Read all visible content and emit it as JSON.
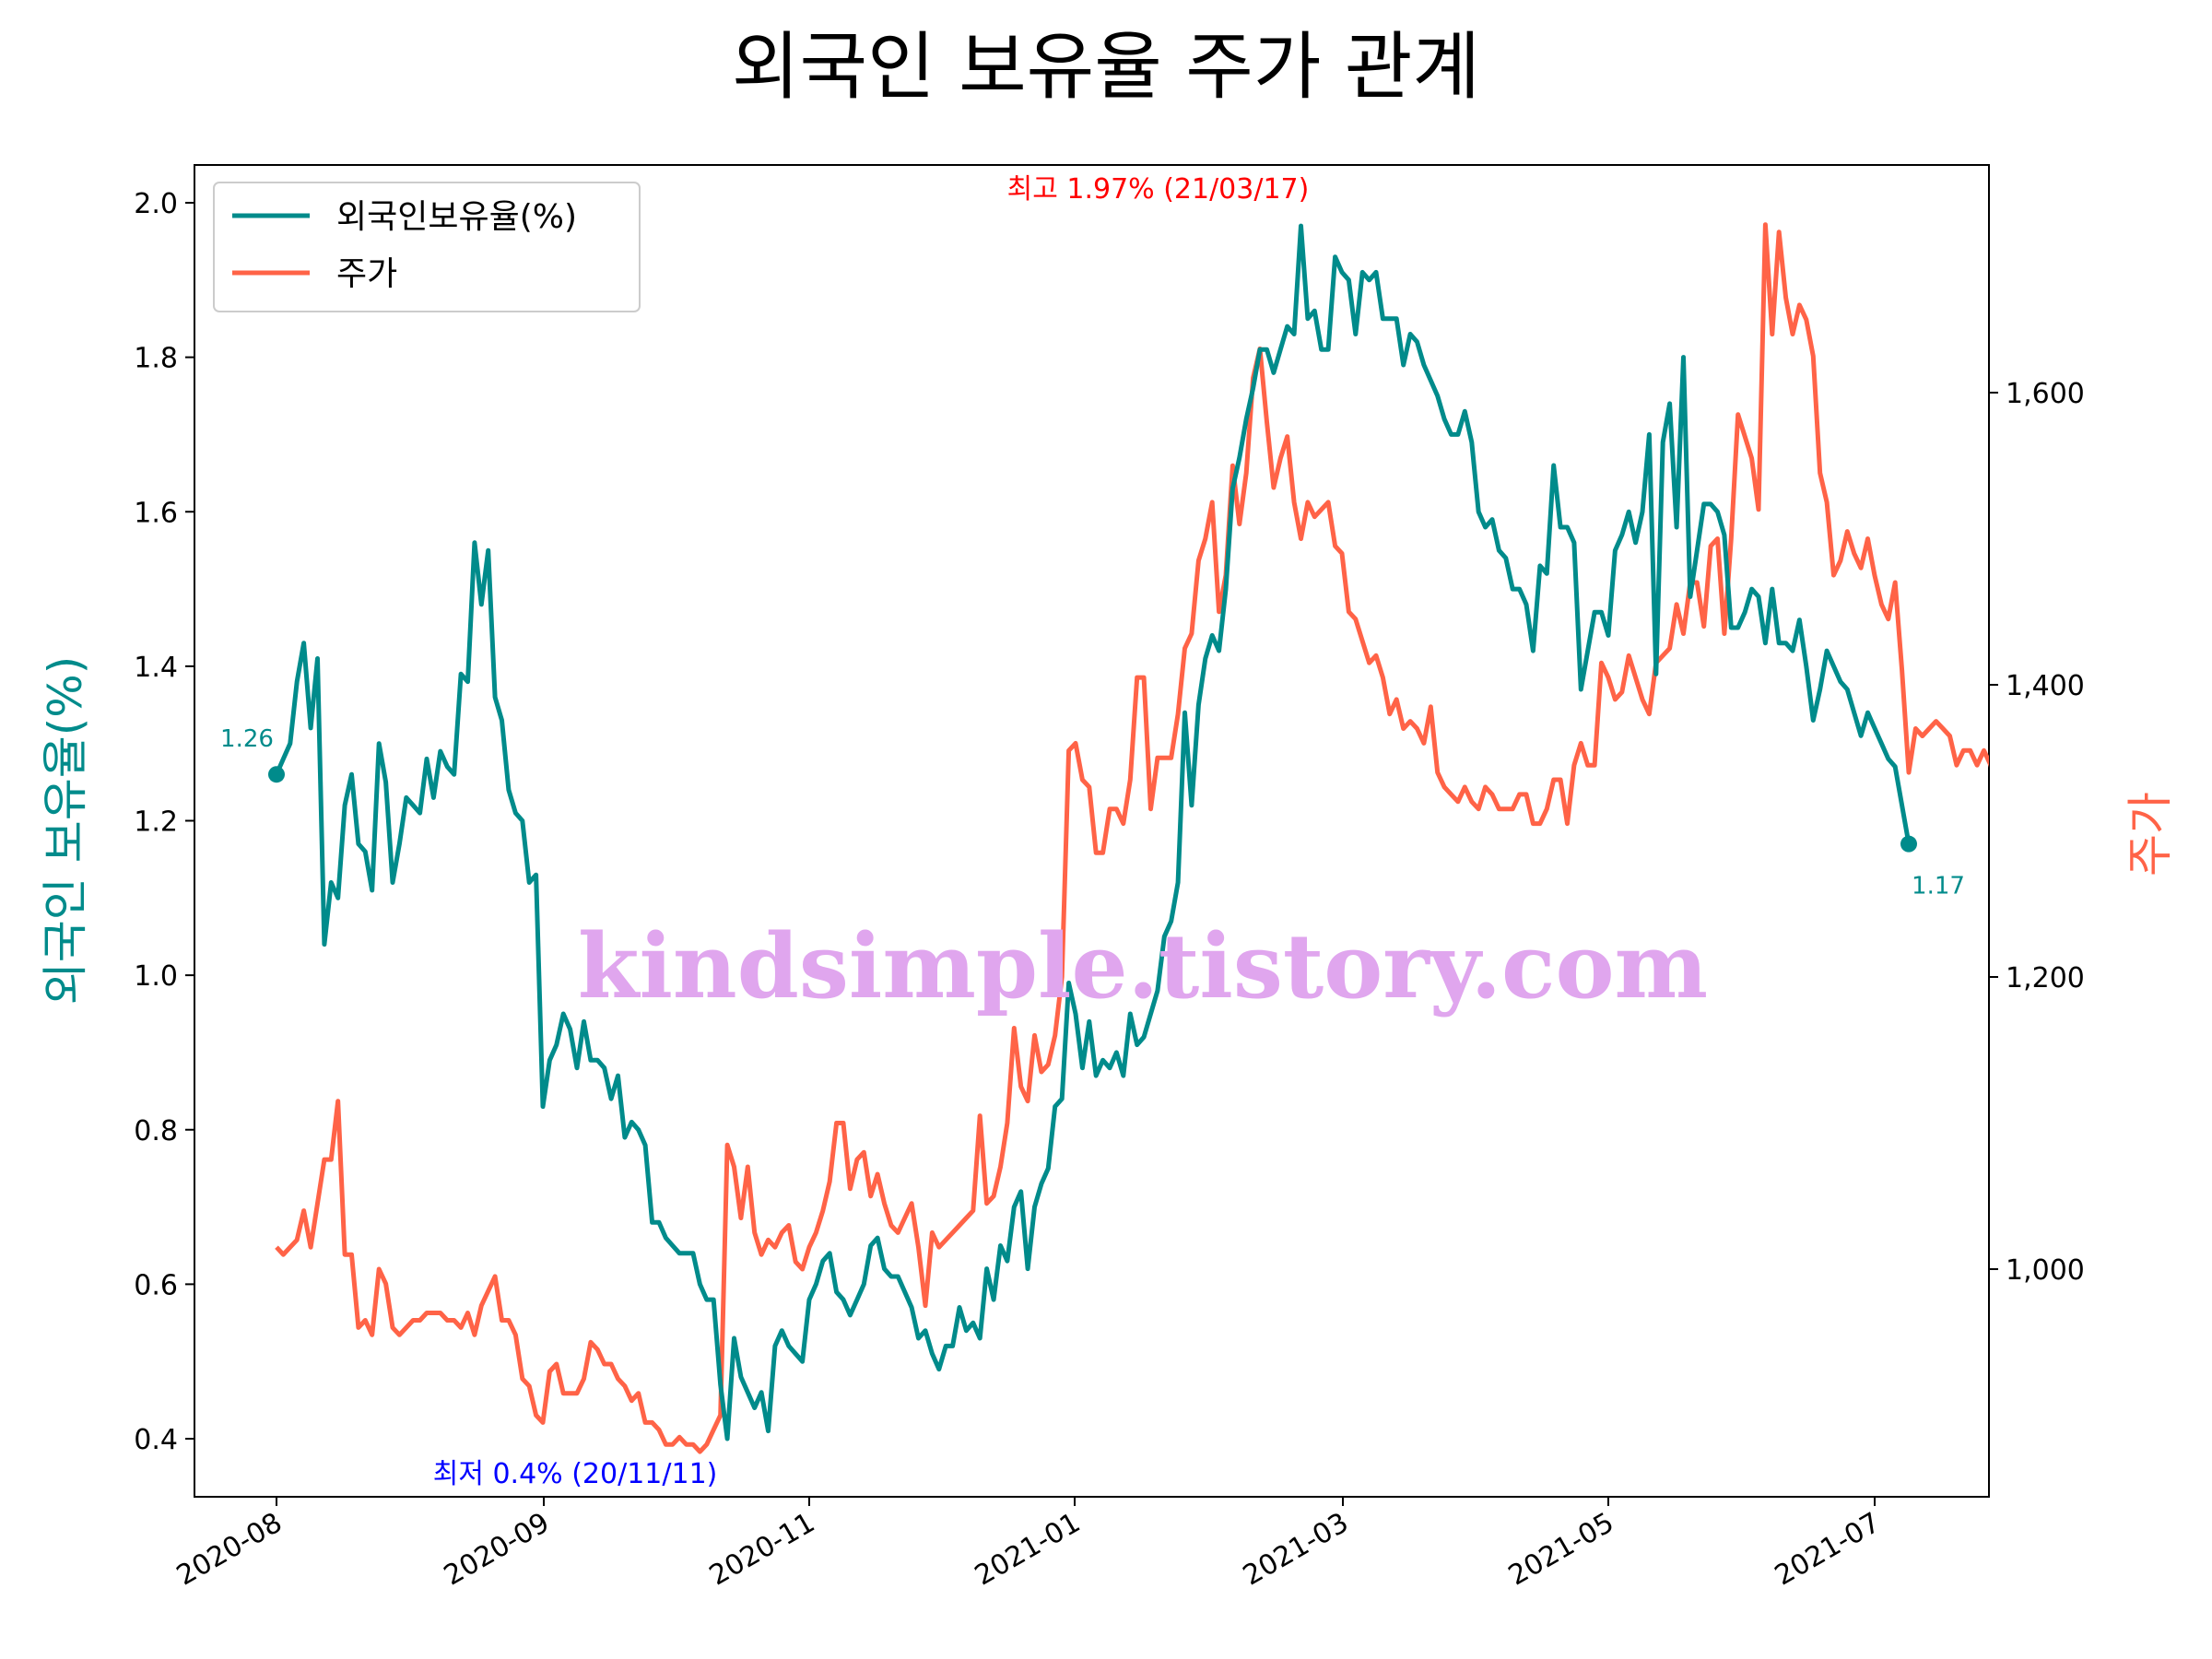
{
  "chart_data": {
    "type": "line",
    "title": "외국인 보유율 주가 관계",
    "ylabel": "외국인 보유율(%)",
    "y2label": "주가",
    "ylim": [
      0.32,
      2.05
    ],
    "y2lim": [
      845,
      1757
    ],
    "yticks": [
      "0.4",
      "0.6",
      "0.8",
      "1.0",
      "1.2",
      "1.4",
      "1.6",
      "1.8",
      "2.0"
    ],
    "y2ticks": [
      "1,000",
      "1,200",
      "1,400",
      "1,600"
    ],
    "xticks": [
      "2020-08",
      "2020-09",
      "2020-11",
      "2021-01",
      "2021-03",
      "2021-05",
      "2021-07"
    ],
    "grid": false,
    "legend_position": "upper left",
    "series": [
      {
        "name": "외국인보유율(%)",
        "axis": "left",
        "color": "#008b8b",
        "values": [
          1.26,
          1.28,
          1.3,
          1.38,
          1.43,
          1.32,
          1.41,
          1.04,
          1.12,
          1.1,
          1.22,
          1.26,
          1.17,
          1.16,
          1.11,
          1.3,
          1.25,
          1.12,
          1.17,
          1.23,
          1.22,
          1.21,
          1.28,
          1.23,
          1.29,
          1.27,
          1.26,
          1.39,
          1.38,
          1.56,
          1.48,
          1.55,
          1.36,
          1.33,
          1.24,
          1.21,
          1.2,
          1.12,
          1.13,
          0.83,
          0.89,
          0.91,
          0.95,
          0.93,
          0.88,
          0.94,
          0.89,
          0.89,
          0.88,
          0.84,
          0.87,
          0.79,
          0.81,
          0.8,
          0.78,
          0.68,
          0.68,
          0.66,
          0.65,
          0.64,
          0.64,
          0.64,
          0.6,
          0.58,
          0.58,
          0.47,
          0.4,
          0.53,
          0.48,
          0.46,
          0.44,
          0.46,
          0.41,
          0.52,
          0.54,
          0.52,
          0.51,
          0.5,
          0.58,
          0.6,
          0.63,
          0.64,
          0.59,
          0.58,
          0.56,
          0.58,
          0.6,
          0.65,
          0.66,
          0.62,
          0.61,
          0.61,
          0.59,
          0.57,
          0.53,
          0.54,
          0.51,
          0.49,
          0.52,
          0.52,
          0.57,
          0.54,
          0.55,
          0.53,
          0.62,
          0.58,
          0.65,
          0.63,
          0.7,
          0.72,
          0.62,
          0.7,
          0.73,
          0.75,
          0.83,
          0.84,
          0.99,
          0.95,
          0.88,
          0.94,
          0.87,
          0.89,
          0.88,
          0.9,
          0.87,
          0.95,
          0.91,
          0.92,
          0.95,
          0.98,
          1.05,
          1.07,
          1.12,
          1.34,
          1.22,
          1.35,
          1.41,
          1.44,
          1.42,
          1.5,
          1.63,
          1.67,
          1.72,
          1.76,
          1.81,
          1.81,
          1.78,
          1.81,
          1.84,
          1.83,
          1.97,
          1.85,
          1.86,
          1.81,
          1.81,
          1.93,
          1.91,
          1.9,
          1.83,
          1.91,
          1.9,
          1.91,
          1.85,
          1.85,
          1.85,
          1.79,
          1.83,
          1.82,
          1.79,
          1.77,
          1.75,
          1.72,
          1.7,
          1.7,
          1.73,
          1.69,
          1.6,
          1.58,
          1.59,
          1.55,
          1.54,
          1.5,
          1.5,
          1.48,
          1.42,
          1.53,
          1.52,
          1.66,
          1.58,
          1.58,
          1.56,
          1.37,
          1.42,
          1.47,
          1.47,
          1.44,
          1.55,
          1.57,
          1.6,
          1.56,
          1.6,
          1.7,
          1.39,
          1.69,
          1.74,
          1.58,
          1.8,
          1.49,
          1.55,
          1.61,
          1.61,
          1.6,
          1.57,
          1.45,
          1.45,
          1.47,
          1.5,
          1.49,
          1.43,
          1.5,
          1.43,
          1.43,
          1.42,
          1.46,
          1.4,
          1.33,
          1.37,
          1.42,
          1.4,
          1.38,
          1.37,
          1.34,
          1.31,
          1.34,
          1.32,
          1.3,
          1.28,
          1.27,
          1.22,
          1.17
        ]
      },
      {
        "name": "주가",
        "axis": "right",
        "color": "#ff6347",
        "values": [
          1015,
          1010,
          1015,
          1020,
          1040,
          1015,
          1045,
          1075,
          1075,
          1115,
          1010,
          1010,
          960,
          965,
          955,
          1000,
          990,
          960,
          955,
          960,
          965,
          965,
          970,
          970,
          970,
          965,
          965,
          960,
          970,
          955,
          975,
          985,
          995,
          965,
          965,
          955,
          925,
          920,
          900,
          895,
          930,
          935,
          915,
          915,
          915,
          925,
          950,
          945,
          935,
          935,
          925,
          920,
          910,
          915,
          895,
          895,
          890,
          880,
          880,
          885,
          880,
          880,
          875,
          880,
          890,
          900,
          1085,
          1070,
          1035,
          1070,
          1025,
          1010,
          1020,
          1015,
          1025,
          1030,
          1005,
          1000,
          1015,
          1025,
          1040,
          1060,
          1100,
          1100,
          1055,
          1075,
          1080,
          1050,
          1065,
          1045,
          1030,
          1025,
          1035,
          1045,
          1015,
          975,
          1025,
          1015,
          1020,
          1025,
          1030,
          1035,
          1040,
          1105,
          1045,
          1050,
          1070,
          1100,
          1165,
          1125,
          1115,
          1160,
          1135,
          1140,
          1160,
          1200,
          1355,
          1360,
          1335,
          1330,
          1285,
          1285,
          1315,
          1315,
          1305,
          1335,
          1405,
          1405,
          1315,
          1350,
          1350,
          1350,
          1380,
          1425,
          1435,
          1485,
          1500,
          1525,
          1450,
          1475,
          1550,
          1510,
          1545,
          1610,
          1630,
          1580,
          1535,
          1555,
          1570,
          1525,
          1500,
          1525,
          1515,
          1520,
          1525,
          1495,
          1490,
          1450,
          1445,
          1430,
          1415,
          1420,
          1405,
          1380,
          1390,
          1370,
          1375,
          1370,
          1360,
          1385,
          1340,
          1330,
          1325,
          1320,
          1330,
          1320,
          1315,
          1330,
          1325,
          1315,
          1315,
          1315,
          1325,
          1325,
          1305,
          1305,
          1315,
          1335,
          1335,
          1305,
          1345,
          1360,
          1345,
          1345,
          1415,
          1405,
          1390,
          1395,
          1420,
          1405,
          1390,
          1380,
          1415,
          1420,
          1425,
          1455,
          1435,
          1470,
          1470,
          1440,
          1495,
          1500,
          1435,
          1500,
          1585,
          1570,
          1555,
          1520,
          1715,
          1640,
          1710,
          1665,
          1640,
          1660,
          1650,
          1625,
          1545,
          1525,
          1475,
          1485,
          1505,
          1490,
          1480,
          1500,
          1475,
          1455,
          1445,
          1470,
          1410,
          1340,
          1370,
          1365,
          1370,
          1375,
          1370,
          1365,
          1345,
          1355,
          1355,
          1345,
          1355,
          1345,
          1325,
          1345,
          1330,
          1320,
          1310,
          1305
        ]
      }
    ],
    "annotations": {
      "start": "1.26",
      "end": "1.17",
      "max": "최고 1.97% (21/03/17)",
      "min": "최저 0.4% (20/11/11)"
    },
    "watermark": "kindsimple.tistory.com"
  }
}
